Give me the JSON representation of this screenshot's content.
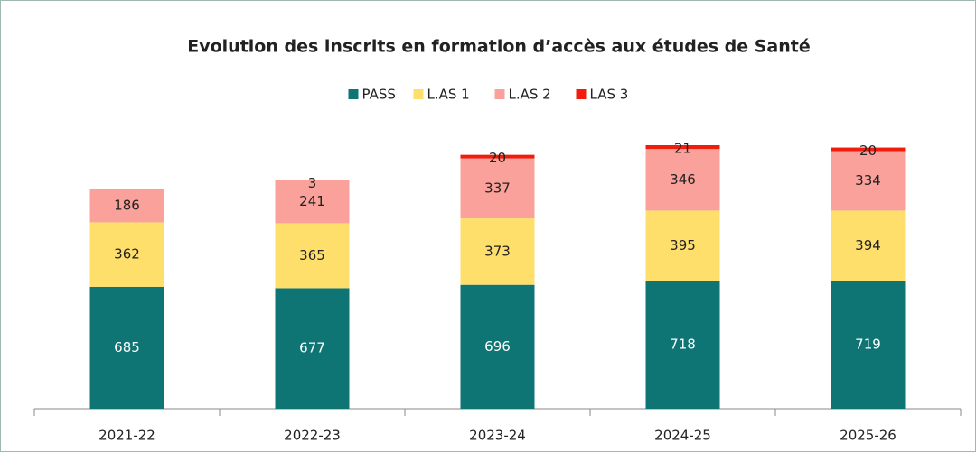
{
  "chart_data": {
    "type": "bar",
    "stacked": true,
    "title": "Evolution des inscrits en formation d’accès aux études de Santé",
    "categories": [
      "2021-22",
      "2022-23",
      "2023-24",
      "2024-25",
      "2025-26"
    ],
    "series": [
      {
        "name": "PASS",
        "color": "#0e7474",
        "values": [
          685,
          677,
          696,
          718,
          719
        ]
      },
      {
        "name": "L.AS 1",
        "color": "#ffdf6b",
        "values": [
          362,
          365,
          373,
          395,
          394
        ]
      },
      {
        "name": "L.AS 2",
        "color": "#f9a19a",
        "values": [
          186,
          241,
          337,
          346,
          334
        ]
      },
      {
        "name": "LAS 3",
        "color": "#f01d0c",
        "values": [
          null,
          3,
          20,
          21,
          20
        ]
      }
    ],
    "legend": "top"
  }
}
